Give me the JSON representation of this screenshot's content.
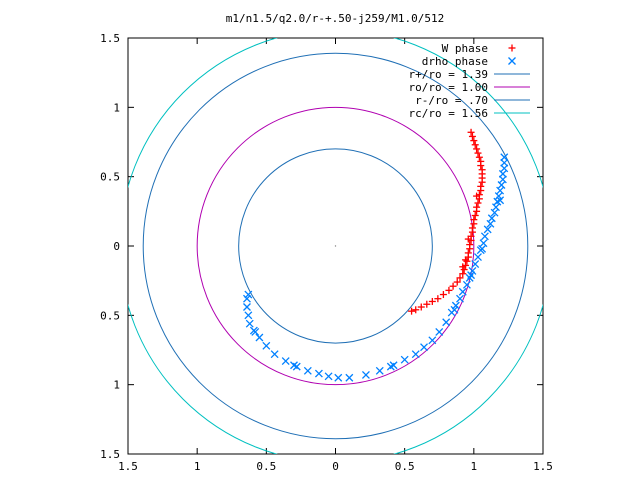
{
  "chart_data": {
    "type": "scatter",
    "title": "m1/n1.5/q2.0/r-+.50-j259/M1.0/512",
    "xlabel": "",
    "ylabel": "",
    "xlim": [
      -1.5,
      1.5
    ],
    "ylim": [
      -1.5,
      1.5
    ],
    "x_ticks": [
      -1.5,
      -1,
      -0.5,
      0,
      0.5,
      1,
      1.5
    ],
    "y_ticks": [
      -1.5,
      -1,
      -0.5,
      0,
      0.5,
      1,
      1.5
    ],
    "x_tick_labels": [
      "1.5",
      "1",
      "0.5",
      "0",
      "0.5",
      "1",
      "1.5"
    ],
    "y_tick_labels": [
      "1.5",
      "1",
      "0.5",
      "0",
      "0.5",
      "1",
      "1.5"
    ],
    "grid": false,
    "legend_position": "top-right",
    "series": [
      {
        "name": "W phase",
        "marker": "plus",
        "color": "#ff0000",
        "points": [
          [
            0.98,
            0.82
          ],
          [
            0.99,
            0.79
          ],
          [
            1.0,
            0.76
          ],
          [
            1.01,
            0.73
          ],
          [
            1.02,
            0.7
          ],
          [
            1.03,
            0.67
          ],
          [
            1.04,
            0.64
          ],
          [
            1.05,
            0.61
          ],
          [
            1.05,
            0.58
          ],
          [
            1.06,
            0.55
          ],
          [
            1.06,
            0.52
          ],
          [
            1.06,
            0.49
          ],
          [
            1.06,
            0.46
          ],
          [
            1.05,
            0.43
          ],
          [
            1.05,
            0.4
          ],
          [
            1.04,
            0.37
          ],
          [
            1.04,
            0.34
          ],
          [
            1.03,
            0.31
          ],
          [
            1.02,
            0.28
          ],
          [
            1.02,
            0.25
          ],
          [
            1.01,
            0.22
          ],
          [
            1.0,
            0.19
          ],
          [
            1.0,
            0.16
          ],
          [
            0.99,
            0.13
          ],
          [
            0.99,
            0.1
          ],
          [
            0.98,
            0.07
          ],
          [
            0.98,
            0.04
          ],
          [
            0.97,
            0.01
          ],
          [
            0.97,
            -0.02
          ],
          [
            0.96,
            -0.05
          ],
          [
            0.96,
            -0.08
          ],
          [
            0.95,
            -0.11
          ],
          [
            0.94,
            -0.14
          ],
          [
            0.93,
            -0.17
          ],
          [
            0.92,
            -0.2
          ],
          [
            0.9,
            -0.23
          ],
          [
            0.88,
            -0.26
          ],
          [
            0.85,
            -0.29
          ],
          [
            0.82,
            -0.32
          ],
          [
            0.78,
            -0.35
          ],
          [
            0.74,
            -0.38
          ],
          [
            0.7,
            -0.4
          ],
          [
            0.66,
            -0.42
          ],
          [
            0.62,
            -0.44
          ],
          [
            0.58,
            -0.46
          ],
          [
            0.55,
            -0.47
          ],
          [
            1.02,
            0.36
          ],
          [
            0.94,
            -0.1
          ],
          [
            0.96,
            0.05
          ],
          [
            0.92,
            -0.15
          ]
        ]
      },
      {
        "name": "drho phase",
        "marker": "cross",
        "color": "#0080ff",
        "points": [
          [
            1.22,
            0.64
          ],
          [
            1.22,
            0.6
          ],
          [
            1.22,
            0.56
          ],
          [
            1.21,
            0.52
          ],
          [
            1.21,
            0.48
          ],
          [
            1.2,
            0.44
          ],
          [
            1.19,
            0.4
          ],
          [
            1.18,
            0.36
          ],
          [
            1.17,
            0.32
          ],
          [
            1.16,
            0.28
          ],
          [
            1.15,
            0.24
          ],
          [
            1.13,
            0.2
          ],
          [
            1.12,
            0.16
          ],
          [
            1.1,
            0.12
          ],
          [
            1.08,
            0.07
          ],
          [
            1.07,
            0.02
          ],
          [
            1.05,
            -0.03
          ],
          [
            1.03,
            -0.08
          ],
          [
            1.01,
            -0.13
          ],
          [
            0.99,
            -0.18
          ],
          [
            0.97,
            -0.23
          ],
          [
            0.95,
            -0.28
          ],
          [
            0.92,
            -0.33
          ],
          [
            0.9,
            -0.38
          ],
          [
            0.87,
            -0.43
          ],
          [
            0.84,
            -0.48
          ],
          [
            0.8,
            -0.55
          ],
          [
            0.75,
            -0.62
          ],
          [
            0.7,
            -0.68
          ],
          [
            0.64,
            -0.73
          ],
          [
            0.58,
            -0.78
          ],
          [
            0.5,
            -0.82
          ],
          [
            0.42,
            -0.86
          ],
          [
            0.32,
            -0.9
          ],
          [
            0.22,
            -0.93
          ],
          [
            0.1,
            -0.95
          ],
          [
            0.02,
            -0.95
          ],
          [
            -0.05,
            -0.94
          ],
          [
            -0.12,
            -0.92
          ],
          [
            -0.2,
            -0.9
          ],
          [
            -0.28,
            -0.87
          ],
          [
            -0.36,
            -0.83
          ],
          [
            -0.44,
            -0.78
          ],
          [
            -0.5,
            -0.72
          ],
          [
            -0.55,
            -0.66
          ],
          [
            -0.59,
            -0.61
          ],
          [
            -0.62,
            -0.56
          ],
          [
            -0.63,
            -0.5
          ],
          [
            -0.64,
            -0.44
          ],
          [
            -0.64,
            -0.38
          ],
          [
            -0.63,
            -0.35
          ],
          [
            1.19,
            0.33
          ],
          [
            1.06,
            -0.02
          ],
          [
            0.98,
            -0.21
          ],
          [
            0.86,
            -0.46
          ],
          [
            0.4,
            -0.87
          ],
          [
            -0.3,
            -0.86
          ],
          [
            -0.58,
            -0.62
          ]
        ]
      }
    ],
    "circles": [
      {
        "name": "r+/ro = 1.39",
        "radius": 1.39,
        "color": "#1f6fb5"
      },
      {
        "name": "ro/ro = 1.00",
        "radius": 1.0,
        "color": "#b000b0"
      },
      {
        "name": "r-/ro = .70",
        "radius": 0.7,
        "color": "#1f6fb5"
      },
      {
        "name": "rc/ro = 1.56",
        "radius": 1.56,
        "color": "#00c0c0"
      }
    ]
  }
}
